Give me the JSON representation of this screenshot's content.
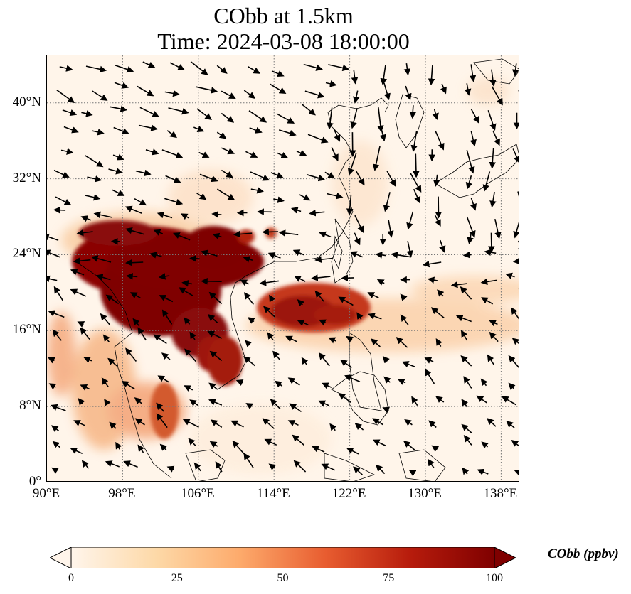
{
  "title": {
    "line1": "CObb at 1.5km",
    "line2": "Time: 2024-03-08 18:00:00"
  },
  "map": {
    "lon_range": [
      90,
      140
    ],
    "lat_range": [
      0,
      45
    ],
    "x_ticks": [
      "90°E",
      "98°E",
      "106°E",
      "114°E",
      "122°E",
      "130°E",
      "138°E"
    ],
    "y_ticks": [
      "0°",
      "8°N",
      "16°N",
      "24°N",
      "32°N",
      "40°N"
    ],
    "x_tick_values": [
      90,
      98,
      106,
      114,
      122,
      130,
      138
    ],
    "y_tick_values": [
      0,
      8,
      16,
      24,
      32,
      40
    ],
    "gridline_style": "dotted",
    "field_variable": "CObb",
    "colormap": [
      "#fff5eb",
      "#fdd9a8",
      "#fdaa6b",
      "#e85d30",
      "#b71c0c",
      "#7f0000"
    ]
  },
  "colorbar": {
    "label": "CObb (ppbv)",
    "ticks": [
      "0",
      "25",
      "50",
      "75",
      "100"
    ],
    "tick_values": [
      0,
      25,
      50,
      75,
      100
    ],
    "range": [
      0,
      100
    ],
    "extend": "both"
  }
}
